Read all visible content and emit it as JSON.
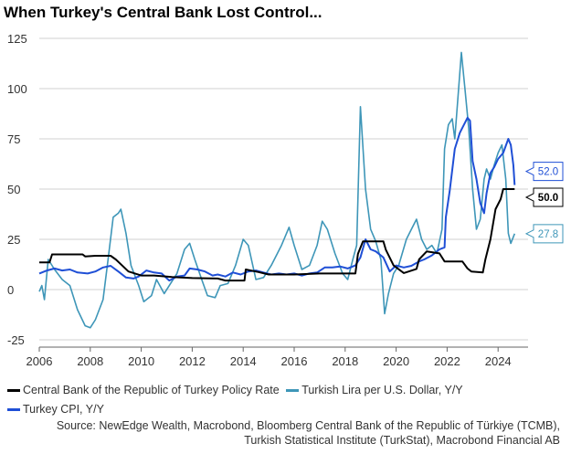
{
  "chart_data": {
    "type": "line",
    "title": "When Turkey's Central Bank Lost Control...",
    "xlabel": "",
    "ylabel": "",
    "xlim": [
      2006,
      2025
    ],
    "ylim": [
      -30,
      130
    ],
    "xticks": [
      2006,
      2008,
      2010,
      2012,
      2014,
      2016,
      2018,
      2020,
      2022,
      2024
    ],
    "yticks": [
      -25,
      0,
      25,
      50,
      75,
      100,
      125
    ],
    "grid": "horizontal",
    "legend_position": "bottom",
    "series": [
      {
        "name": "Central Bank of the Republic of Turkey Policy Rate",
        "color": "#000000",
        "end_label": "50.0",
        "points": [
          [
            2006,
            13.5
          ],
          [
            2006.4,
            13.5
          ],
          [
            2006.5,
            17.5
          ],
          [
            2007.7,
            17.5
          ],
          [
            2007.8,
            16.5
          ],
          [
            2008.2,
            16.8
          ],
          [
            2008.8,
            16.8
          ],
          [
            2009,
            15
          ],
          [
            2009.5,
            9
          ],
          [
            2010,
            7
          ],
          [
            2010.5,
            7
          ],
          [
            2011,
            6.5
          ],
          [
            2011.2,
            6.25
          ],
          [
            2012,
            5.75
          ],
          [
            2013,
            5.5
          ],
          [
            2013.3,
            4.5
          ],
          [
            2014.05,
            4.5
          ],
          [
            2014.1,
            10
          ],
          [
            2014.6,
            8.75
          ],
          [
            2015,
            7.5
          ],
          [
            2016,
            7.5
          ],
          [
            2017,
            8
          ],
          [
            2018.4,
            8
          ],
          [
            2018.5,
            17.75
          ],
          [
            2018.7,
            24
          ],
          [
            2019.5,
            24
          ],
          [
            2019.6,
            19.75
          ],
          [
            2019.9,
            12
          ],
          [
            2020.3,
            8.25
          ],
          [
            2020.8,
            10.25
          ],
          [
            2020.9,
            15
          ],
          [
            2021.2,
            19
          ],
          [
            2021.7,
            18
          ],
          [
            2021.9,
            14
          ],
          [
            2022.6,
            14
          ],
          [
            2022.8,
            10.5
          ],
          [
            2022.95,
            9
          ],
          [
            2023.4,
            8.5
          ],
          [
            2023.5,
            15
          ],
          [
            2023.7,
            25
          ],
          [
            2023.9,
            40
          ],
          [
            2024.1,
            45
          ],
          [
            2024.2,
            50
          ],
          [
            2024.65,
            50
          ]
        ]
      },
      {
        "name": "Turkish Lira per U.S. Dollar, Y/Y",
        "color": "#3e96b8",
        "end_label": "27.8",
        "points": [
          [
            2006,
            -1
          ],
          [
            2006.1,
            2
          ],
          [
            2006.2,
            -5
          ],
          [
            2006.35,
            15
          ],
          [
            2006.6,
            10
          ],
          [
            2006.9,
            5
          ],
          [
            2007.2,
            2
          ],
          [
            2007.5,
            -10
          ],
          [
            2007.8,
            -18
          ],
          [
            2008,
            -19
          ],
          [
            2008.2,
            -15
          ],
          [
            2008.5,
            -5
          ],
          [
            2008.7,
            15
          ],
          [
            2008.9,
            36
          ],
          [
            2009.1,
            38
          ],
          [
            2009.2,
            40
          ],
          [
            2009.4,
            28
          ],
          [
            2009.6,
            12
          ],
          [
            2009.9,
            2
          ],
          [
            2010.1,
            -6
          ],
          [
            2010.4,
            -3
          ],
          [
            2010.6,
            5
          ],
          [
            2010.9,
            -2
          ],
          [
            2011.1,
            2
          ],
          [
            2011.4,
            8
          ],
          [
            2011.7,
            20
          ],
          [
            2011.9,
            23
          ],
          [
            2012.1,
            15
          ],
          [
            2012.4,
            4
          ],
          [
            2012.6,
            -3
          ],
          [
            2012.9,
            -4
          ],
          [
            2013.1,
            2
          ],
          [
            2013.4,
            3
          ],
          [
            2013.7,
            12
          ],
          [
            2014,
            25
          ],
          [
            2014.2,
            22
          ],
          [
            2014.5,
            5
          ],
          [
            2014.8,
            6
          ],
          [
            2015.1,
            12
          ],
          [
            2015.5,
            22
          ],
          [
            2015.8,
            31
          ],
          [
            2016,
            22
          ],
          [
            2016.3,
            10
          ],
          [
            2016.6,
            12
          ],
          [
            2016.9,
            22
          ],
          [
            2017.1,
            34
          ],
          [
            2017.3,
            30
          ],
          [
            2017.6,
            18
          ],
          [
            2017.9,
            8
          ],
          [
            2018.1,
            5
          ],
          [
            2018.3,
            15
          ],
          [
            2018.45,
            22
          ],
          [
            2018.6,
            91
          ],
          [
            2018.8,
            50
          ],
          [
            2019.0,
            30
          ],
          [
            2019.2,
            24
          ],
          [
            2019.4,
            15
          ],
          [
            2019.55,
            -12
          ],
          [
            2019.7,
            -2
          ],
          [
            2019.9,
            8
          ],
          [
            2020.1,
            12
          ],
          [
            2020.4,
            25
          ],
          [
            2020.6,
            30
          ],
          [
            2020.8,
            35
          ],
          [
            2021.0,
            25
          ],
          [
            2021.2,
            20
          ],
          [
            2021.4,
            22
          ],
          [
            2021.6,
            18
          ],
          [
            2021.8,
            30
          ],
          [
            2021.9,
            70
          ],
          [
            2022.05,
            82
          ],
          [
            2022.2,
            85
          ],
          [
            2022.3,
            75
          ],
          [
            2022.45,
            100
          ],
          [
            2022.56,
            118
          ],
          [
            2022.7,
            100
          ],
          [
            2022.85,
            80
          ],
          [
            2023.0,
            50
          ],
          [
            2023.15,
            30
          ],
          [
            2023.3,
            35
          ],
          [
            2023.45,
            55
          ],
          [
            2023.55,
            60
          ],
          [
            2023.7,
            55
          ],
          [
            2023.85,
            62
          ],
          [
            2024.0,
            68
          ],
          [
            2024.15,
            72
          ],
          [
            2024.3,
            55
          ],
          [
            2024.4,
            28
          ],
          [
            2024.5,
            23
          ],
          [
            2024.65,
            27.8
          ]
        ]
      },
      {
        "name": "Turkey CPI, Y/Y",
        "color": "#1f4fd6",
        "end_label": "52.0",
        "points": [
          [
            2006,
            8
          ],
          [
            2006.3,
            9.5
          ],
          [
            2006.6,
            10.5
          ],
          [
            2006.9,
            9.5
          ],
          [
            2007.2,
            10
          ],
          [
            2007.5,
            8.5
          ],
          [
            2007.9,
            8
          ],
          [
            2008.2,
            9
          ],
          [
            2008.5,
            11
          ],
          [
            2008.8,
            11.8
          ],
          [
            2009.1,
            9
          ],
          [
            2009.4,
            6
          ],
          [
            2009.7,
            5.5
          ],
          [
            2009.9,
            6.5
          ],
          [
            2010.2,
            9.5
          ],
          [
            2010.5,
            8.5
          ],
          [
            2010.8,
            8
          ],
          [
            2011.1,
            4.5
          ],
          [
            2011.4,
            6.5
          ],
          [
            2011.7,
            7
          ],
          [
            2011.9,
            10.5
          ],
          [
            2012.2,
            10
          ],
          [
            2012.5,
            9
          ],
          [
            2012.8,
            7
          ],
          [
            2013.0,
            7.5
          ],
          [
            2013.3,
            6.5
          ],
          [
            2013.6,
            8.5
          ],
          [
            2013.9,
            7.5
          ],
          [
            2014.2,
            9
          ],
          [
            2014.5,
            9.5
          ],
          [
            2014.8,
            8.5
          ],
          [
            2015.1,
            7.5
          ],
          [
            2015.4,
            8
          ],
          [
            2015.7,
            7.5
          ],
          [
            2016,
            8
          ],
          [
            2016.3,
            7
          ],
          [
            2016.6,
            8
          ],
          [
            2016.9,
            8.5
          ],
          [
            2017.2,
            11
          ],
          [
            2017.5,
            11
          ],
          [
            2017.8,
            11.5
          ],
          [
            2018.1,
            10.5
          ],
          [
            2018.4,
            12
          ],
          [
            2018.6,
            16
          ],
          [
            2018.8,
            25
          ],
          [
            2019.0,
            20
          ],
          [
            2019.2,
            19
          ],
          [
            2019.5,
            16
          ],
          [
            2019.75,
            9
          ],
          [
            2020.0,
            12
          ],
          [
            2020.3,
            11
          ],
          [
            2020.6,
            11.8
          ],
          [
            2020.9,
            14
          ],
          [
            2021.1,
            15
          ],
          [
            2021.4,
            17
          ],
          [
            2021.7,
            20
          ],
          [
            2021.9,
            21
          ],
          [
            2021.95,
            36
          ],
          [
            2022.1,
            49
          ],
          [
            2022.3,
            70
          ],
          [
            2022.5,
            78
          ],
          [
            2022.7,
            83
          ],
          [
            2022.8,
            85.5
          ],
          [
            2022.9,
            84
          ],
          [
            2023.0,
            64
          ],
          [
            2023.15,
            55
          ],
          [
            2023.3,
            43
          ],
          [
            2023.45,
            38
          ],
          [
            2023.55,
            48
          ],
          [
            2023.7,
            58
          ],
          [
            2023.85,
            61
          ],
          [
            2024.0,
            65
          ],
          [
            2024.2,
            68
          ],
          [
            2024.4,
            75
          ],
          [
            2024.5,
            72
          ],
          [
            2024.6,
            62
          ],
          [
            2024.65,
            52
          ]
        ]
      }
    ]
  },
  "source_line1": "Source: NewEdge Wealth, Macrobond, Bloomberg Central Bank of the Republic of Türkiye (TCMB),",
  "source_line2": "Turkish Statistical Institute (TurkStat), Macrobond Financial AB"
}
